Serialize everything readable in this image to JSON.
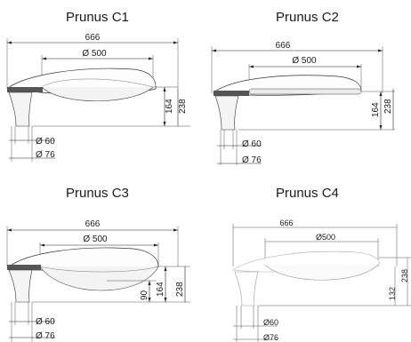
{
  "panels": [
    {
      "title": "Prunus C1",
      "dims": {
        "overall_length": "666",
        "shade_diameter": "Ø 500",
        "height_total": "238",
        "height_mid": "164",
        "pole_inner": "Ø 60",
        "pole_outer": "Ø 76"
      }
    },
    {
      "title": "Prunus C2",
      "dims": {
        "overall_length": "666",
        "shade_diameter": "Ø 500",
        "height_total": "238",
        "height_mid": "164",
        "pole_inner": "Ø 60",
        "pole_outer": "Ø 76"
      }
    },
    {
      "title": "Prunus C3",
      "dims": {
        "overall_length": "666",
        "shade_diameter": "Ø 500",
        "height_total": "238",
        "height_mid": "164",
        "height_low": "90",
        "pole_inner": "Ø 60",
        "pole_outer": "Ø 76"
      }
    },
    {
      "title": "Prunus C4",
      "dims": {
        "overall_length": "666",
        "shade_diameter": "Ø500",
        "height_total": "238",
        "height_mid": "132",
        "pole_inner": "Ø60",
        "pole_outer": "Ø76"
      }
    }
  ]
}
